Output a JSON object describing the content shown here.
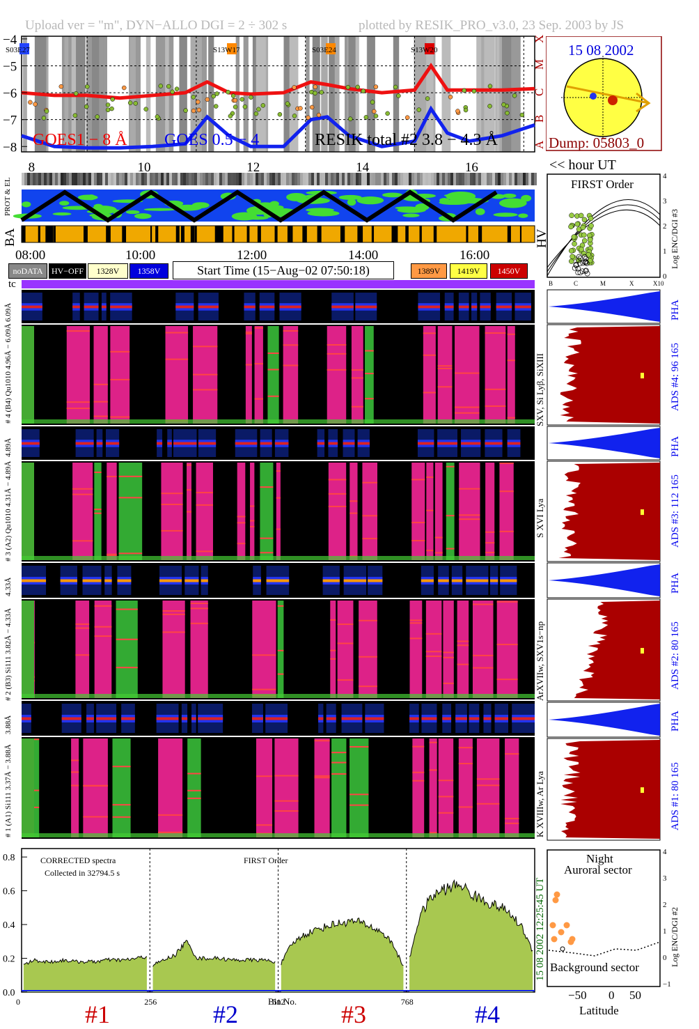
{
  "header": {
    "upload": "Upload ver = \"m\", DYN−ALLO DGI =   2 ÷ 302 s",
    "plotted": "plotted by RESIK_PRO_v3.0, 23 Sep. 2003 by JS"
  },
  "top_panel": {
    "goes1": "GOES1 − 8 Å",
    "goes2": "GOES 0.5 − 4",
    "resik": "RESIK total #2  3.8 − 4.3 Å",
    "flare_labels": [
      "S03E27",
      "S13W17",
      "S03E24",
      "S13W20"
    ],
    "flare_colors": [
      "#2244ff",
      "#ff8800",
      "#ff8800",
      "#dd0000"
    ],
    "y_ticks": [
      "−4",
      "−5",
      "−6",
      "−7",
      "−8"
    ],
    "class_letters": [
      "X",
      "M",
      "C",
      "B",
      "A"
    ],
    "x_ticks": [
      "8",
      "10",
      "12",
      "14",
      "16"
    ],
    "hour_label": "<< hour UT"
  },
  "sun_box": {
    "date": "15 08 2002",
    "dump": "Dump: 05803_0"
  },
  "status_panel": {
    "left_labels": [
      "PROT & EL",
      "BA"
    ],
    "hv": "HV",
    "x_ticks": [
      "08:00",
      "10:00",
      "12:00",
      "14:00",
      "16:00"
    ],
    "start_time": "Start Time (15−Aug−02 07:50:18)",
    "keys": [
      {
        "label": "noDATA",
        "bg": "#888888",
        "fg": "#ffffff"
      },
      {
        "label": "HV−OFF",
        "bg": "#000000",
        "fg": "#ffffff"
      },
      {
        "label": "1328V",
        "bg": "#ffffcc",
        "fg": "#000000"
      },
      {
        "label": "1358V",
        "bg": "#0000dd",
        "fg": "#ffffff"
      },
      {
        "label": "1389V",
        "bg": "#ff9944",
        "fg": "#000000"
      },
      {
        "label": "1419V",
        "bg": "#ffff44",
        "fg": "#000000"
      },
      {
        "label": "1450V",
        "bg": "#cc0000",
        "fg": "#ffffff"
      }
    ]
  },
  "first_order_panel": {
    "title": "FIRST Order",
    "ylabel": "Log ENC/DGI #3",
    "y_ticks": [
      "4",
      "3",
      "2",
      "1",
      "0"
    ],
    "x_ticks": [
      "B",
      "C",
      "M",
      "X",
      "X10"
    ]
  },
  "spectrogram": {
    "tc": "tc",
    "labels": [
      "6.09Å",
      "# 4 (B4) Qu1010 4.96Å − 6.09Å",
      "4.89Å",
      "# 3 (A2) Qu1010  4.31Å − 4.89Å",
      "4.33Å",
      "# 2 (B3) Si111  3.82Å − 4.33Å",
      "3.88Å",
      "# 1 (A1) Si111  3.37Å − 3.88Å"
    ]
  },
  "right_panels": {
    "pha": "PHA",
    "ads": [
      {
        "label": "ADS #4:    96 165",
        "lines": "SXV, Si Lyβ, SiXIII"
      },
      {
        "label": "ADS #3:    112 165",
        "lines": "S XVI Lya"
      },
      {
        "label": "ADS #2:    80 165",
        "lines": "ArXVIIw, SXV1s−np"
      },
      {
        "label": "ADS #1:    80 165",
        "lines": "K XVIIIw, Ar Lya"
      }
    ]
  },
  "spectrum_panel": {
    "text1": "CORRECTED spectra",
    "text2": "Collected in 32794.5 s",
    "text3": "FIRST Order",
    "xlabel": "Bin No.",
    "x_ticks": [
      "0",
      "256",
      "512",
      "768"
    ],
    "y_ticks": [
      "0.0",
      "0.2",
      "0.4",
      "0.6",
      "0.8"
    ],
    "time_label": "15 08 2002     12:25:45 UT",
    "channel_labels": [
      {
        "label": "#1",
        "color": "#cc0000"
      },
      {
        "label": "#2",
        "color": "#0000cc"
      },
      {
        "label": "#3",
        "color": "#cc0000"
      },
      {
        "label": "#4",
        "color": "#0000cc"
      }
    ]
  },
  "latitude_panel": {
    "night": "Night",
    "auroral": "Auroral sector",
    "background": "Background sector",
    "xlabel": "Latitude",
    "x_ticks": [
      "−50",
      "0",
      "50"
    ],
    "ylabel": "Log ENC/DGI #2",
    "y_ticks": [
      "4",
      "3",
      "2",
      "1",
      "0",
      "−1"
    ]
  },
  "chart_data": [
    {
      "type": "line",
      "title": "",
      "xlabel": "hour UT",
      "ylabel": "",
      "xlim": [
        7.8,
        17.2
      ],
      "ylim": [
        -8.2,
        -3.9
      ],
      "x": [
        7.8,
        8.4,
        9.0,
        9.6,
        10.2,
        10.8,
        11.2,
        11.6,
        12.0,
        12.6,
        13.1,
        13.4,
        13.8,
        14.4,
        15.0,
        15.3,
        15.6,
        16.0,
        16.6,
        17.2
      ],
      "series": [
        {
          "name": "GOES1 − 8 Å",
          "values": [
            -6.0,
            -6.1,
            -6.1,
            -6.2,
            -6.1,
            -6.0,
            -5.6,
            -6.0,
            -6.05,
            -6.0,
            -5.6,
            -5.7,
            -5.85,
            -6.0,
            -5.9,
            -5.0,
            -5.9,
            -5.9,
            -5.9,
            -5.85
          ]
        },
        {
          "name": "GOES 0.5 − 4",
          "values": [
            -7.6,
            -8.0,
            -8.05,
            -8.05,
            -8.0,
            -7.9,
            -6.9,
            -7.6,
            -8.0,
            -8.0,
            -7.0,
            -6.9,
            -7.6,
            -8.0,
            -7.8,
            -6.6,
            -7.5,
            -7.8,
            -7.6,
            -7.2
          ]
        }
      ]
    },
    {
      "type": "area",
      "title": "",
      "xlabel": "Bin No.",
      "ylabel": "",
      "xlim": [
        0,
        1024
      ],
      "ylim": [
        0,
        0.85
      ],
      "segments": [
        {
          "name": "#1",
          "x0": 4,
          "x1": 250,
          "values": [
            0.16,
            0.19,
            0.18,
            0.18,
            0.19,
            0.18,
            0.18,
            0.18,
            0.19,
            0.19,
            0.19,
            0.2,
            0.21
          ]
        },
        {
          "name": "#2",
          "x0": 262,
          "x1": 506,
          "values": [
            0.16,
            0.19,
            0.22,
            0.3,
            0.2,
            0.2,
            0.2,
            0.19,
            0.19,
            0.19,
            0.19,
            0.18
          ]
        },
        {
          "name": "#3",
          "x0": 518,
          "x1": 762,
          "values": [
            0.17,
            0.28,
            0.33,
            0.36,
            0.38,
            0.4,
            0.41,
            0.42,
            0.41,
            0.38,
            0.35,
            0.28,
            0.15
          ]
        },
        {
          "name": "#4",
          "x0": 774,
          "x1": 1020,
          "values": [
            0.2,
            0.45,
            0.55,
            0.6,
            0.62,
            0.64,
            0.58,
            0.55,
            0.52,
            0.5,
            0.45,
            0.38,
            0.24
          ]
        }
      ]
    }
  ]
}
